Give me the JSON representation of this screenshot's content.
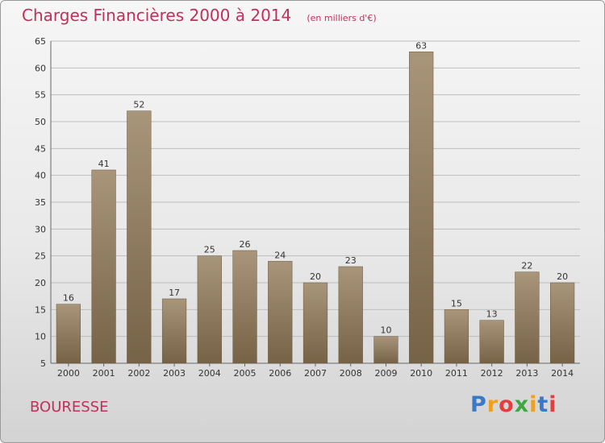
{
  "chart_data": {
    "type": "bar",
    "title": "Charges Financières 2000 à 2014",
    "subtitle": "(en milliers d'€)",
    "categories": [
      "2000",
      "2001",
      "2002",
      "2003",
      "2004",
      "2005",
      "2006",
      "2007",
      "2008",
      "2009",
      "2010",
      "2011",
      "2012",
      "2013",
      "2014"
    ],
    "values": [
      16,
      41,
      52,
      17,
      25,
      26,
      24,
      20,
      23,
      10,
      63,
      15,
      13,
      22,
      20
    ],
    "ylim": [
      5,
      65
    ],
    "yticks": [
      5,
      10,
      15,
      20,
      25,
      30,
      35,
      40,
      45,
      50,
      55,
      60,
      65
    ],
    "grid": true,
    "bar_color": "#8f7a5a",
    "grid_color": "#bdbdbd"
  },
  "footer": {
    "commune": "BOURESSE",
    "brand": "Proxiti",
    "brand_colors": [
      "#3a78c8",
      "#f0a020",
      "#e04040",
      "#40a840",
      "#f0a020",
      "#3a78c8",
      "#e04040"
    ]
  }
}
